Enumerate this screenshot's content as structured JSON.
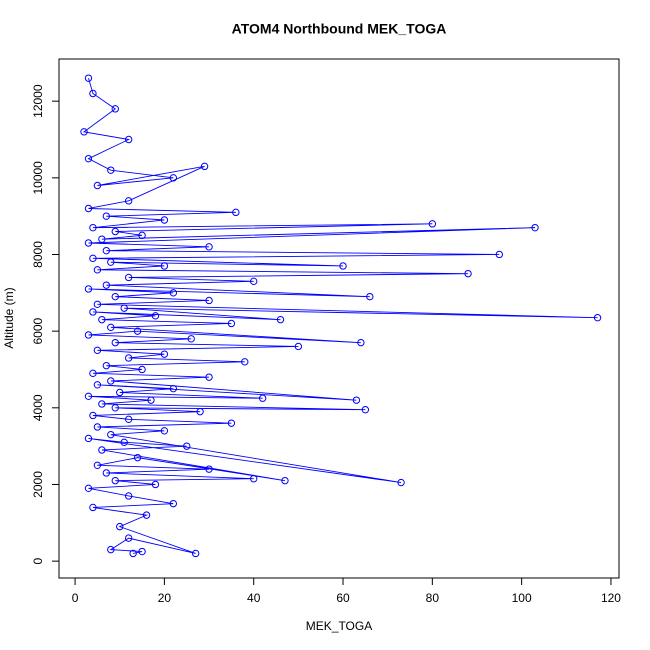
{
  "chart_data": {
    "type": "line",
    "title": "ATOM4 Northbound MEK_TOGA",
    "xlabel": "MEK_TOGA",
    "ylabel": "Altitude (m)",
    "x": [
      13,
      15,
      8,
      12,
      27,
      10,
      16,
      4,
      22,
      12,
      3,
      18,
      9,
      40,
      7,
      30,
      5,
      14,
      47,
      6,
      25,
      11,
      3,
      73,
      8,
      20,
      5,
      35,
      12,
      4,
      28,
      9,
      65,
      6,
      17,
      3,
      42,
      10,
      22,
      5,
      63,
      8,
      30,
      4,
      15,
      7,
      38,
      12,
      20,
      5,
      50,
      9,
      26,
      3,
      14,
      64,
      8,
      35,
      6,
      18,
      4,
      46,
      11,
      117,
      5,
      30,
      9,
      22,
      3,
      66,
      7,
      40,
      12,
      88,
      5,
      20,
      8,
      60,
      4,
      95,
      7,
      30,
      3,
      103,
      6,
      15,
      9,
      80,
      4,
      20,
      7,
      36,
      3,
      12,
      29,
      5,
      22,
      8,
      3,
      12,
      2,
      9,
      4,
      3
    ],
    "series": [
      {
        "color": "#0000ff",
        "values": [
          200,
          250,
          300,
          600,
          200,
          900,
          1200,
          1400,
          1500,
          1700,
          1900,
          2000,
          2100,
          2150,
          2300,
          2400,
          2500,
          2700,
          2100,
          2900,
          3000,
          3100,
          3200,
          2050,
          3300,
          3400,
          3500,
          3600,
          3700,
          3800,
          3900,
          4000,
          3950,
          4100,
          4200,
          4300,
          4250,
          4400,
          4500,
          4600,
          4200,
          4700,
          4800,
          4900,
          5000,
          5100,
          5200,
          5300,
          5400,
          5500,
          5600,
          5700,
          5800,
          5900,
          6000,
          5700,
          6100,
          6200,
          6300,
          6400,
          6500,
          6300,
          6600,
          6350,
          6700,
          6800,
          6900,
          7000,
          7100,
          6900,
          7200,
          7300,
          7400,
          7500,
          7600,
          7700,
          7800,
          7700,
          7900,
          8000,
          8100,
          8200,
          8300,
          8700,
          8400,
          8500,
          8600,
          8800,
          8700,
          8900,
          9000,
          9100,
          9200,
          9400,
          10300,
          9800,
          10000,
          10200,
          10500,
          11000,
          11200,
          11800,
          12200,
          12600
        ]
      }
    ],
    "xlim": [
      -3.6,
      121.8
    ],
    "ylim": [
      -440,
      13100
    ],
    "xticks": [
      0,
      20,
      40,
      60,
      80,
      100,
      120
    ],
    "yticks": [
      0,
      2000,
      4000,
      6000,
      8000,
      10000,
      12000
    ]
  }
}
